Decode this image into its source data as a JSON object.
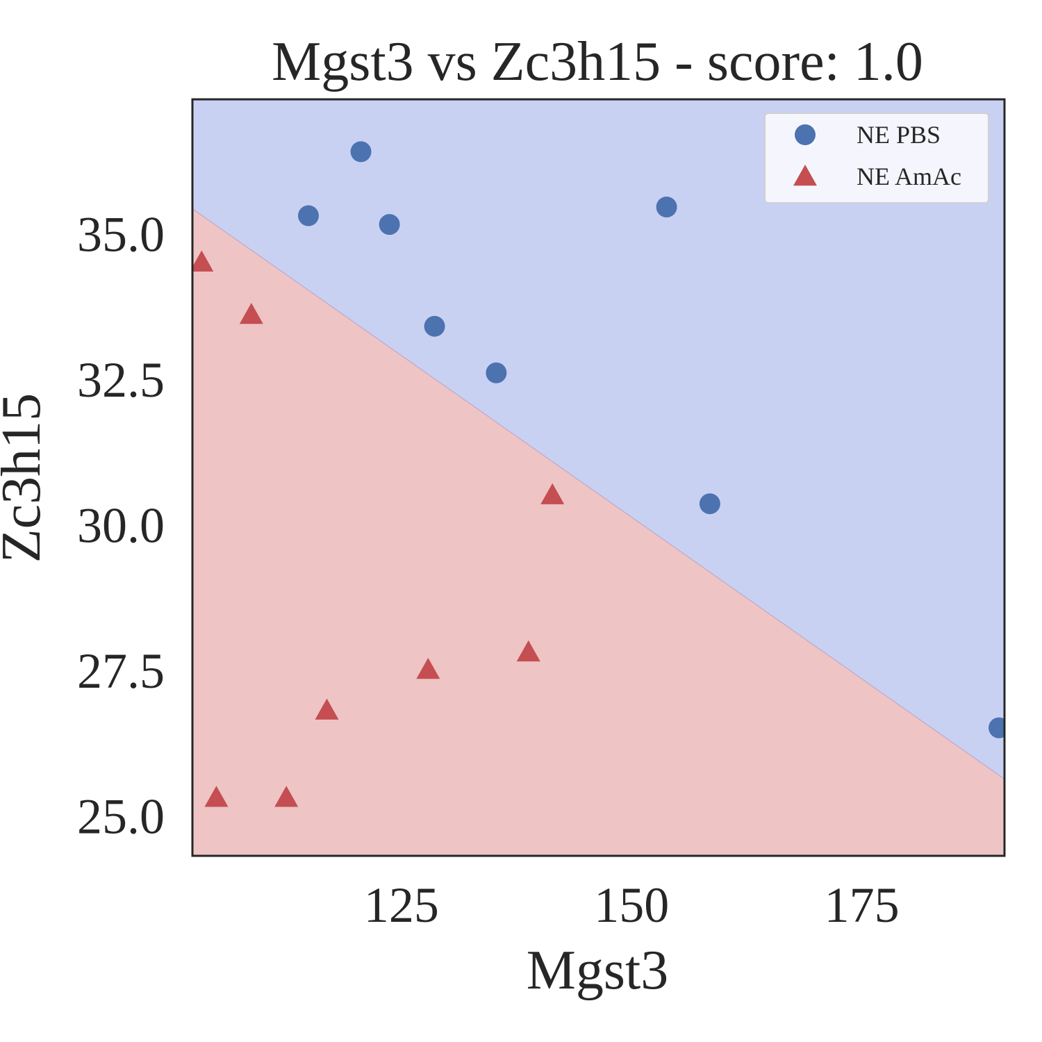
{
  "chart_data": {
    "type": "scatter",
    "title": "Mgst3 vs Zc3h15 - score: 1.0",
    "xlabel": "Mgst3",
    "ylabel": "Zc3h15",
    "xlim": [
      102.3,
      190.5
    ],
    "ylim": [
      24.3,
      37.3
    ],
    "xticks": [
      125,
      150,
      175
    ],
    "yticks": [
      25.0,
      27.5,
      30.0,
      32.5,
      35.0
    ],
    "grid": false,
    "legend_position": "top-right",
    "decision_boundary": {
      "points": [
        [
          102.3,
          35.42
        ],
        [
          190.5,
          25.62
        ]
      ],
      "region_above_color": "#c9d1f2",
      "region_below_color": "#eec4c4"
    },
    "series": [
      {
        "name": "NE PBS",
        "marker": "circle",
        "color": "#4c72b0",
        "points": [
          [
            120.6,
            36.4
          ],
          [
            114.9,
            35.3
          ],
          [
            123.7,
            35.15
          ],
          [
            153.8,
            35.45
          ],
          [
            128.6,
            33.4
          ],
          [
            135.3,
            32.6
          ],
          [
            158.5,
            30.35
          ],
          [
            189.9,
            26.5
          ]
        ]
      },
      {
        "name": "NE AmAc",
        "marker": "triangle",
        "color": "#c44e52",
        "points": [
          [
            103.3,
            34.5
          ],
          [
            108.7,
            33.6
          ],
          [
            141.4,
            30.5
          ],
          [
            138.8,
            27.8
          ],
          [
            127.9,
            27.5
          ],
          [
            116.9,
            26.8
          ],
          [
            104.9,
            25.3
          ],
          [
            112.5,
            25.3
          ]
        ]
      }
    ]
  }
}
